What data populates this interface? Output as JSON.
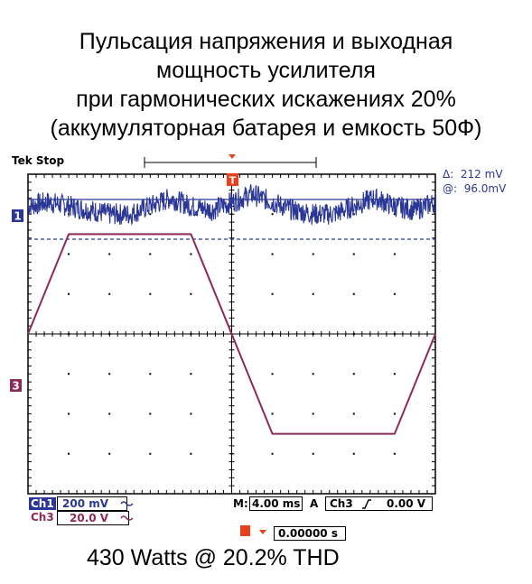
{
  "title_lines": [
    "Пульсация напряжения и выходная",
    "мощность усилителя",
    "при гармонических искажениях 20%",
    "(аккумуляторная батарея и емкость 50Ф)"
  ],
  "status": "Tek Stop",
  "measurements": {
    "delta_symbol": "Δ:",
    "delta_value": "212 mV",
    "at_symbol": "@:",
    "at_value": "96.0mV"
  },
  "channel_markers": {
    "ch1": "1",
    "ch3": "3"
  },
  "trigger_marker": "T",
  "settings": {
    "ch1_label": "Ch1",
    "ch1_scale": "200 mV",
    "ch3_label": "Ch3",
    "ch3_scale": "20.0 V",
    "timebase_label": "M:",
    "timebase_value": "4.00 ms",
    "trigger_mode": "A",
    "trigger_source": "Ch3",
    "trigger_level": "0.00 V",
    "position_value": "0.00000 s"
  },
  "footer": "430 Watts @ 20.2% THD",
  "colors": {
    "ch1": "#2b3796",
    "ch3": "#8c2a5a",
    "trigger": "#e8401c"
  },
  "chart_data": {
    "type": "line",
    "grid": true,
    "x_divisions": 10,
    "y_divisions": 8,
    "series": [
      {
        "name": "Ch1",
        "units": "divisions",
        "x": [
          0,
          0.5,
          1,
          1.5,
          2,
          2.5,
          3,
          3.5,
          4,
          4.5,
          5,
          5.5,
          6,
          6.5,
          7,
          7.5,
          8,
          8.5,
          9,
          9.5,
          10
        ],
        "values": [
          3.2,
          3.3,
          3.2,
          3.1,
          3.0,
          3.0,
          3.2,
          3.4,
          3.2,
          3.1,
          3.3,
          3.5,
          3.3,
          3.1,
          3.0,
          3.0,
          3.2,
          3.4,
          3.2,
          3.1,
          3.3
        ]
      },
      {
        "name": "Ch3",
        "units": "divisions",
        "x": [
          0,
          1,
          4,
          6,
          9,
          10
        ],
        "values": [
          0,
          2.5,
          2.5,
          -2.5,
          -2.5,
          0
        ]
      }
    ]
  }
}
